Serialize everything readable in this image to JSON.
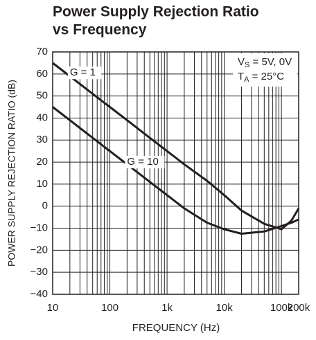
{
  "chart_data": {
    "type": "line",
    "title_lines": [
      "Power Supply Rejection Ratio",
      "vs Frequency"
    ],
    "x_label": "FREQUENCY (Hz)",
    "y_label": "POWER SUPPLY REJECTION RATIO (dB)",
    "x": [
      10,
      20,
      50,
      100,
      200,
      500,
      1000,
      2000,
      5000,
      10000,
      20000,
      50000,
      100000,
      150000,
      200000
    ],
    "series": [
      {
        "name": "G = 1",
        "color": "#231f20",
        "values": [
          65,
          59,
          51,
          45,
          39,
          31,
          25,
          19,
          11.5,
          5,
          -2,
          -8,
          -10.5,
          -6.5,
          -1
        ]
      },
      {
        "name": "G = 10",
        "color": "#231f20",
        "values": [
          45,
          39,
          31,
          25,
          19,
          11,
          5,
          -1,
          -7.5,
          -10.5,
          -12.5,
          -11.5,
          -9,
          -7.5,
          -6
        ]
      }
    ],
    "conditions": [
      {
        "symbol": "V",
        "subscript": "S",
        "text": " = 5V, 0V"
      },
      {
        "symbol": "T",
        "subscript": "A",
        "text": " = 25°C"
      }
    ],
    "x_log": true,
    "xlim": [
      10,
      200000
    ],
    "xticks": [
      10,
      100,
      {
        "value": 1000,
        "label": "1k"
      },
      {
        "value": 10000,
        "label": "10k"
      },
      {
        "value": 100000,
        "label": "100k"
      },
      {
        "value": 200000,
        "label": "200k"
      }
    ],
    "xminorticks": [
      20,
      30,
      40,
      50,
      60,
      70,
      80,
      90,
      200,
      300,
      400,
      500,
      600,
      700,
      800,
      900,
      2000,
      3000,
      4000,
      5000,
      6000,
      7000,
      8000,
      9000,
      20000,
      30000,
      40000,
      50000,
      60000,
      70000,
      80000,
      90000
    ],
    "ylim": [
      -40,
      70
    ],
    "yticks": [
      {
        "value": -40,
        "label": "−40"
      },
      {
        "value": -30,
        "label": "−30"
      },
      {
        "value": -20,
        "label": "−20"
      },
      {
        "value": -10,
        "label": "−10"
      },
      0,
      10,
      20,
      30,
      40,
      50,
      60,
      70
    ],
    "grid": true
  }
}
